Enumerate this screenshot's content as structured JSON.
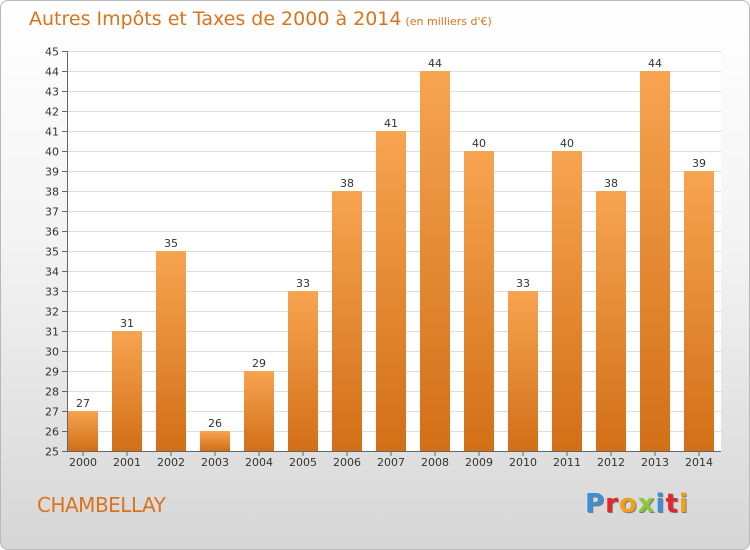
{
  "header": {
    "title": "Autres Impôts et Taxes de 2000 à 2014",
    "subtitle": "(en milliers d'€)"
  },
  "footer": {
    "commune": "CHAMBELLAY",
    "logo": "Proxiti",
    "logo_colors": [
      "#3a8fd6",
      "#e2262b",
      "#f0a020",
      "#8cc63e",
      "#3a8fd6",
      "#e2262b",
      "#f0a020"
    ]
  },
  "colors": {
    "bar_light": "#f7a451",
    "bar_dark": "#d26f17",
    "title": "#d9741c"
  },
  "chart_data": {
    "type": "bar",
    "title": "Autres Impôts et Taxes de 2000 à 2014",
    "subtitle": "(en milliers d'€)",
    "categories": [
      "2000",
      "2001",
      "2002",
      "2003",
      "2004",
      "2005",
      "2006",
      "2007",
      "2008",
      "2009",
      "2010",
      "2011",
      "2012",
      "2013",
      "2014"
    ],
    "values": [
      27,
      31,
      35,
      26,
      29,
      33,
      38,
      41,
      44,
      40,
      33,
      40,
      38,
      44,
      39
    ],
    "ylim": [
      25,
      45
    ],
    "yticks": [
      25,
      26,
      27,
      28,
      29,
      30,
      31,
      32,
      33,
      34,
      35,
      36,
      37,
      38,
      39,
      40,
      41,
      42,
      43,
      44,
      45
    ],
    "grid": "horizontal",
    "data_labels": true
  }
}
